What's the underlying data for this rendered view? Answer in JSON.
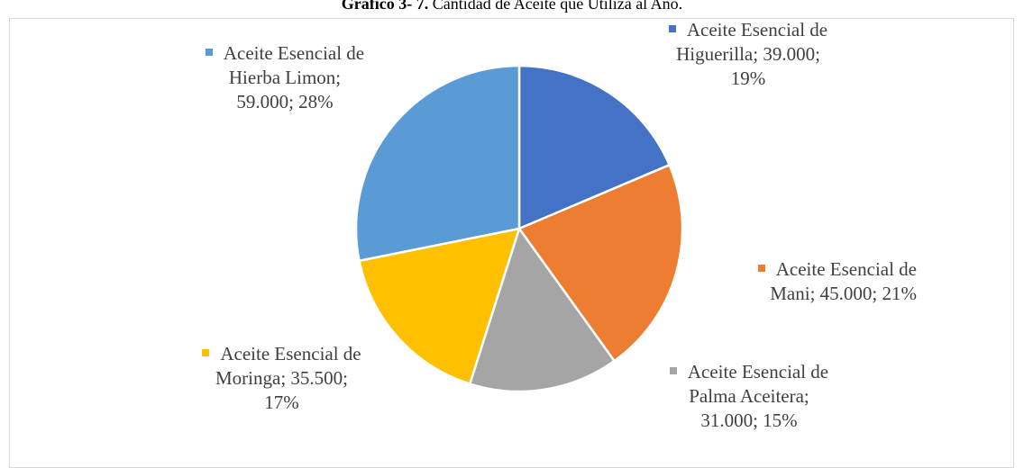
{
  "chart_data": {
    "type": "pie",
    "title_label": "Gráfico 3- 7.",
    "title": "Cantidad de Aceite que Utiliza al Año.",
    "values": [
      39000,
      45000,
      31000,
      35500,
      59000
    ],
    "colors": [
      "#4472c4",
      "#ed7d31",
      "#a5a5a5",
      "#ffc000",
      "#5b9bd5"
    ],
    "value_labels": [
      [
        "Aceite Esencial de",
        "Higuerilla; 39.000;",
        "19%"
      ],
      [
        "Aceite Esencial de",
        "Mani; 45.000; 21%"
      ],
      [
        "Aceite Esencial de",
        "Palma Aceitera;",
        "31.000; 15%"
      ],
      [
        "Aceite Esencial de",
        "Moringa; 35.500;",
        "17%"
      ],
      [
        "Aceite Esencial de",
        "Hierba Limon;",
        "59.000; 28%"
      ]
    ]
  }
}
